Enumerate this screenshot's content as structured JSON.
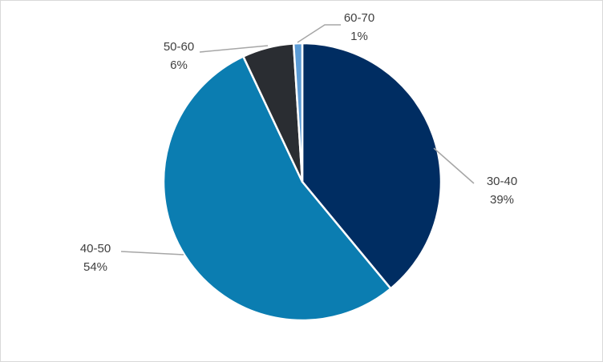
{
  "chart_data": {
    "type": "pie",
    "title": "",
    "categories": [
      "30-40",
      "40-50",
      "50-60",
      "60-70"
    ],
    "values": [
      39,
      54,
      6,
      1
    ],
    "labels": [
      "39%",
      "54%",
      "6%",
      "1%"
    ],
    "colors": [
      "#002d62",
      "#0b7db1",
      "#2a2d32",
      "#5b9bd5"
    ],
    "start_angle": "12 o'clock",
    "direction": "clockwise",
    "legend": "none",
    "data_labels": "outside with leader lines"
  }
}
